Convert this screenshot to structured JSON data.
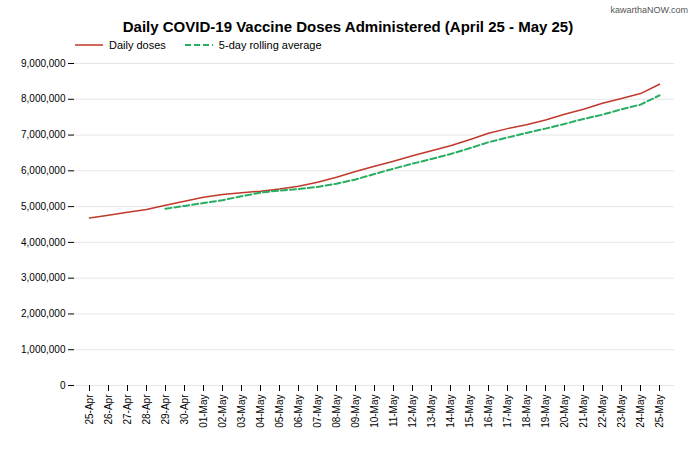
{
  "chart_data": {
    "type": "line",
    "title": "Daily COVID-19 Vaccine Doses Administered (April 25 - May 25)",
    "annotations": [
      "kawarthaNOW.com"
    ],
    "categories": [
      "25-Apr",
      "26-Apr",
      "27-Apr",
      "28-Apr",
      "29-Apr",
      "30-Apr",
      "01-May",
      "02-May",
      "03-May",
      "04-May",
      "05-May",
      "06-May",
      "07-May",
      "08-May",
      "09-May",
      "10-May",
      "11-May",
      "12-May",
      "13-May",
      "14-May",
      "15-May",
      "16-May",
      "17-May",
      "18-May",
      "19-May",
      "20-May",
      "21-May",
      "22-May",
      "23-May",
      "24-May",
      "25-May"
    ],
    "series": [
      {
        "name": "Daily doses",
        "color": "#c0392b",
        "line_style": "solid",
        "values": [
          4680000,
          4760000,
          4840000,
          4920000,
          5040000,
          5150000,
          5260000,
          5340000,
          5390000,
          5430000,
          5490000,
          5570000,
          5680000,
          5820000,
          5980000,
          6130000,
          6270000,
          6420000,
          6560000,
          6700000,
          6870000,
          7050000,
          7180000,
          7290000,
          7420000,
          7580000,
          7720000,
          7890000,
          8020000,
          8160000,
          8420000
        ]
      },
      {
        "name": "5-day rolling average",
        "color": "#27ae60",
        "line_style": "dashed",
        "values": [
          null,
          null,
          null,
          null,
          4940000,
          5020000,
          5100000,
          5180000,
          5290000,
          5390000,
          5450000,
          5490000,
          5550000,
          5640000,
          5760000,
          5910000,
          6060000,
          6200000,
          6330000,
          6470000,
          6630000,
          6800000,
          6930000,
          7060000,
          7180000,
          7310000,
          7450000,
          7570000,
          7720000,
          7850000,
          8110000
        ]
      }
    ],
    "ylim": [
      0,
      9000000
    ],
    "yticks": [
      0,
      {
        "value": 1000000,
        "label": "1,000,000"
      },
      {
        "value": 2000000,
        "label": "2,000,000"
      },
      {
        "value": 3000000,
        "label": "3,000,000"
      },
      {
        "value": 4000000,
        "label": "4,000,000"
      },
      {
        "value": 5000000,
        "label": "5,000,000"
      },
      {
        "value": 6000000,
        "label": "6,000,000"
      },
      {
        "value": 7000000,
        "label": "7,000,000"
      },
      {
        "value": 8000000,
        "label": "8,000,000"
      },
      {
        "value": 9000000,
        "label": "9,000,000"
      }
    ],
    "grid": true,
    "legend": "upper left"
  }
}
